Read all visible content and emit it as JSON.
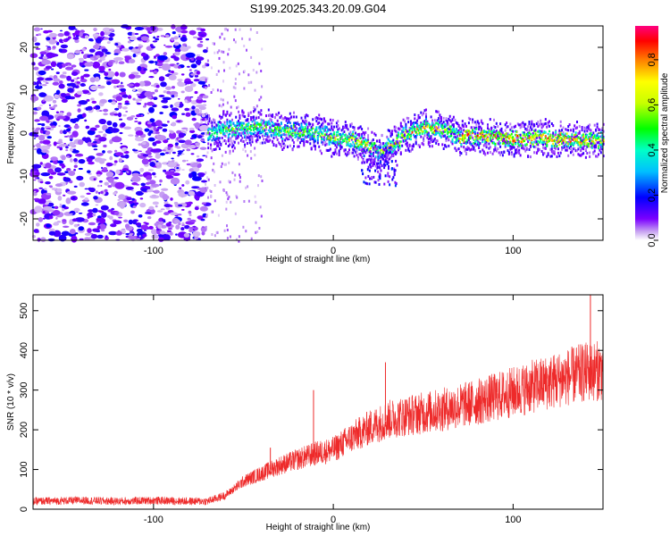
{
  "title": "S199.2025.343.20.09.G04",
  "chart_data": [
    {
      "type": "heatmap",
      "xlabel": "Height of straight line (km)",
      "ylabel": "Frequency (Hz)",
      "xlim": [
        -167,
        150
      ],
      "ylim": [
        -25,
        25
      ],
      "xticks": [
        -100,
        0,
        100
      ],
      "yticks": [
        -20,
        -10,
        0,
        10,
        20
      ],
      "colorbar": {
        "label": "Normalized spectral amplitude",
        "range": [
          0.0,
          0.95
        ],
        "ticks": [
          0.0,
          0.2,
          0.4,
          0.6,
          0.8
        ]
      },
      "noise_region_x": [
        -167,
        -70
      ],
      "ridge": {
        "x": [
          -70,
          -60,
          -40,
          -30,
          -20,
          -10,
          0,
          10,
          20,
          25,
          30,
          40,
          50,
          60,
          70,
          80,
          100,
          120,
          150
        ],
        "center": [
          0.5,
          1,
          1.5,
          1,
          0.5,
          0.5,
          -1,
          -1,
          -3,
          -4,
          -3,
          0,
          1.5,
          1,
          -0.5,
          -0.5,
          -1,
          -1,
          -1.5
        ],
        "peak": [
          0.4,
          0.45,
          0.5,
          0.55,
          0.5,
          0.5,
          0.55,
          0.6,
          0.65,
          0.5,
          0.6,
          0.65,
          0.7,
          0.6,
          0.7,
          0.75,
          0.85,
          0.8,
          0.7
        ]
      }
    },
    {
      "type": "line",
      "xlabel": "Height of straight line (km)",
      "ylabel": "SNR (10 * v/v)",
      "xlim": [
        -167,
        150
      ],
      "ylim": [
        0,
        540
      ],
      "xticks": [
        -100,
        0,
        100
      ],
      "yticks": [
        0,
        100,
        200,
        300,
        400,
        500
      ],
      "color": "#ee2a2a",
      "series": [
        {
          "x": [
            -167,
            -140,
            -120,
            -100,
            -80,
            -70,
            -60,
            -50,
            -40,
            -30,
            -20,
            -10,
            0,
            10,
            20,
            30,
            40,
            60,
            80,
            100,
            120,
            140,
            150
          ],
          "values": [
            20,
            22,
            20,
            22,
            20,
            20,
            35,
            70,
            90,
            110,
            125,
            140,
            150,
            180,
            205,
            225,
            235,
            250,
            270,
            295,
            320,
            345,
            350
          ]
        }
      ],
      "spikes": [
        {
          "x": -35,
          "value": 155
        },
        {
          "x": -11,
          "value": 300
        },
        {
          "x": 29,
          "value": 370
        },
        {
          "x": 143,
          "value": 540
        }
      ]
    }
  ]
}
